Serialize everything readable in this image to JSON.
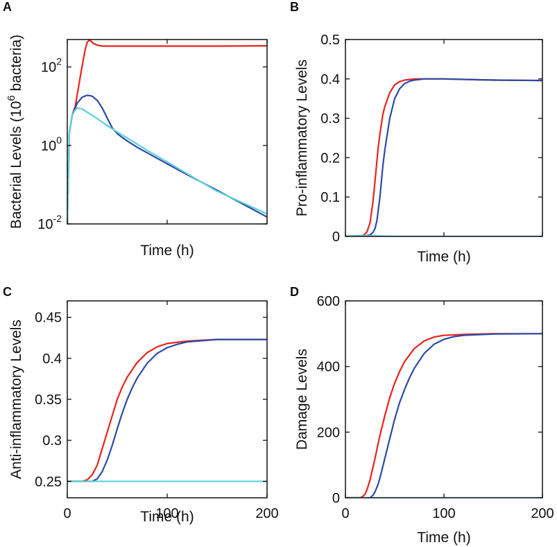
{
  "figure": {
    "colors": {
      "red": "#e8231c",
      "blue": "#2b4aa6",
      "cyan": "#5ed0d8",
      "axis": "#111111"
    }
  },
  "chart_data": [
    {
      "panel": "A",
      "type": "line",
      "yscale": "log",
      "xlabel": "Time (h)",
      "ylabel": {
        "pre": "Bacterial Levels (10",
        "sup": "6",
        "post": " bacteria)"
      },
      "xlim": [
        0,
        200
      ],
      "ylim": [
        0.01,
        500
      ],
      "yticks": [
        {
          "base": "10",
          "exp": "-2",
          "value": 0.01
        },
        {
          "base": "10",
          "exp": "0",
          "value": 1
        },
        {
          "base": "10",
          "exp": "2",
          "value": 100
        }
      ],
      "show_xtick_labels": false,
      "series": [
        {
          "name": "red",
          "color": "#e8231c",
          "x": [
            0,
            2,
            5,
            8,
            10,
            12,
            14,
            16,
            18,
            20,
            22,
            24,
            26,
            28,
            30,
            35,
            40,
            60,
            100,
            150,
            200
          ],
          "y": [
            0.01,
            2,
            6,
            10,
            20,
            40,
            80,
            150,
            280,
            430,
            480,
            450,
            400,
            380,
            360,
            340,
            340,
            340,
            340,
            340,
            345
          ]
        },
        {
          "name": "blue",
          "color": "#2b4aa6",
          "x": [
            0,
            2,
            5,
            8,
            10,
            15,
            20,
            25,
            30,
            35,
            40,
            45,
            50,
            55,
            60,
            70,
            80,
            100,
            120,
            150,
            200
          ],
          "y": [
            0.01,
            2,
            6,
            9,
            12,
            17,
            19,
            18,
            14,
            9,
            5,
            2.8,
            2,
            1.6,
            1.3,
            0.9,
            0.65,
            0.34,
            0.18,
            0.072,
            0.015
          ]
        },
        {
          "name": "cyan",
          "color": "#5ed0d8",
          "x": [
            0,
            2,
            5,
            8,
            10,
            15,
            20,
            25,
            30,
            40,
            50,
            60,
            80,
            100,
            120,
            150,
            200
          ],
          "y": [
            0.01,
            2,
            6,
            8,
            9,
            8.5,
            7,
            5.8,
            4.8,
            3.2,
            2.2,
            1.55,
            0.75,
            0.38,
            0.19,
            0.068,
            0.018
          ]
        }
      ]
    },
    {
      "panel": "B",
      "type": "line",
      "xlabel": "Time (h)",
      "ylabel": "Pro-inflammatory Levels",
      "xlim": [
        0,
        200
      ],
      "ylim": [
        0,
        0.5
      ],
      "yticks": [
        0,
        0.1,
        0.2,
        0.3,
        0.4,
        0.5
      ],
      "yticklabels": [
        "0",
        "0.1",
        "0.2",
        "0.3",
        "0.4",
        "0.5"
      ],
      "show_xtick_labels": false,
      "series": [
        {
          "name": "red",
          "color": "#e8231c",
          "x": [
            0,
            10,
            15,
            18,
            20,
            22,
            25,
            28,
            30,
            33,
            35,
            38,
            40,
            45,
            50,
            55,
            60,
            70,
            80,
            100,
            130,
            150,
            200
          ],
          "y": [
            0,
            0,
            0.001,
            0.003,
            0.006,
            0.012,
            0.035,
            0.09,
            0.14,
            0.22,
            0.26,
            0.31,
            0.33,
            0.365,
            0.385,
            0.393,
            0.397,
            0.4,
            0.4,
            0.4,
            0.398,
            0.397,
            0.396
          ]
        },
        {
          "name": "blue",
          "color": "#2b4aa6",
          "x": [
            0,
            10,
            20,
            25,
            28,
            30,
            32,
            35,
            38,
            40,
            45,
            50,
            55,
            60,
            65,
            70,
            80,
            90,
            100,
            130,
            150,
            200
          ],
          "y": [
            0,
            0,
            0.001,
            0.004,
            0.01,
            0.02,
            0.04,
            0.1,
            0.18,
            0.22,
            0.3,
            0.35,
            0.375,
            0.388,
            0.394,
            0.397,
            0.4,
            0.4,
            0.4,
            0.398,
            0.397,
            0.396
          ]
        },
        {
          "name": "cyan",
          "color": "#5ed0d8",
          "x": [
            0,
            10,
            20,
            30,
            50,
            200
          ],
          "y": [
            0,
            0.002,
            0.002,
            0.001,
            0,
            0
          ]
        }
      ]
    },
    {
      "panel": "C",
      "type": "line",
      "xlabel": "Time (h)",
      "ylabel": "Anti-inflammatory Levels",
      "xlim": [
        0,
        200
      ],
      "ylim": [
        0.23,
        0.47
      ],
      "yticks": [
        0.25,
        0.3,
        0.35,
        0.4,
        0.45
      ],
      "yticklabels": [
        "0.25",
        "0.3",
        "0.35",
        "0.4",
        "0.45"
      ],
      "xticks": [
        0,
        100,
        200
      ],
      "xticklabels": [
        "0",
        "100",
        "200"
      ],
      "series": [
        {
          "name": "red",
          "color": "#e8231c",
          "x": [
            0,
            15,
            20,
            25,
            30,
            35,
            40,
            45,
            50,
            55,
            60,
            70,
            80,
            90,
            100,
            120,
            150,
            200
          ],
          "y": [
            0.25,
            0.25,
            0.252,
            0.258,
            0.27,
            0.29,
            0.31,
            0.33,
            0.35,
            0.365,
            0.377,
            0.395,
            0.407,
            0.414,
            0.418,
            0.421,
            0.423,
            0.423
          ]
        },
        {
          "name": "blue",
          "color": "#2b4aa6",
          "x": [
            0,
            25,
            30,
            35,
            40,
            45,
            50,
            55,
            60,
            65,
            70,
            80,
            90,
            100,
            110,
            120,
            150,
            200
          ],
          "y": [
            0.25,
            0.25,
            0.253,
            0.262,
            0.276,
            0.294,
            0.314,
            0.333,
            0.35,
            0.364,
            0.376,
            0.394,
            0.406,
            0.413,
            0.417,
            0.42,
            0.423,
            0.423
          ]
        },
        {
          "name": "cyan",
          "color": "#5ed0d8",
          "x": [
            0,
            200
          ],
          "y": [
            0.25,
            0.25
          ]
        }
      ]
    },
    {
      "panel": "D",
      "type": "line",
      "xlabel": "Time (h)",
      "ylabel": "Damage Levels",
      "xlim": [
        0,
        200
      ],
      "ylim": [
        0,
        600
      ],
      "yticks": [
        0,
        200,
        400,
        600
      ],
      "yticklabels": [
        "0",
        "200",
        "400",
        "600"
      ],
      "xticks": [
        0,
        100,
        200
      ],
      "xticklabels": [
        "0",
        "100",
        "200"
      ],
      "series": [
        {
          "name": "red",
          "color": "#e8231c",
          "x": [
            0,
            15,
            18,
            20,
            22,
            25,
            30,
            35,
            40,
            45,
            50,
            55,
            60,
            70,
            80,
            90,
            100,
            120,
            150,
            200
          ],
          "y": [
            0,
            0,
            5,
            12,
            25,
            55,
            120,
            190,
            250,
            305,
            350,
            385,
            415,
            455,
            478,
            490,
            495,
            498,
            500,
            500
          ]
        },
        {
          "name": "blue",
          "color": "#2b4aa6",
          "x": [
            0,
            25,
            28,
            30,
            33,
            35,
            40,
            45,
            50,
            55,
            60,
            65,
            70,
            80,
            90,
            100,
            110,
            120,
            150,
            200
          ],
          "y": [
            0,
            0,
            8,
            18,
            40,
            60,
            120,
            180,
            240,
            290,
            330,
            365,
            395,
            440,
            468,
            483,
            491,
            495,
            499,
            500
          ]
        },
        {
          "name": "cyan",
          "color": "#5ed0d8",
          "x": [
            0,
            200
          ],
          "y": [
            0,
            0
          ]
        }
      ]
    }
  ]
}
